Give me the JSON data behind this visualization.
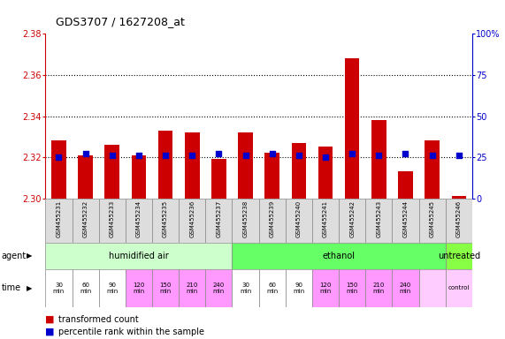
{
  "title": "GDS3707 / 1627208_at",
  "samples": [
    "GSM455231",
    "GSM455232",
    "GSM455233",
    "GSM455234",
    "GSM455235",
    "GSM455236",
    "GSM455237",
    "GSM455238",
    "GSM455239",
    "GSM455240",
    "GSM455241",
    "GSM455242",
    "GSM455243",
    "GSM455244",
    "GSM455245",
    "GSM455246"
  ],
  "red_values": [
    2.328,
    2.321,
    2.326,
    2.321,
    2.333,
    2.332,
    2.319,
    2.332,
    2.322,
    2.327,
    2.325,
    2.368,
    2.338,
    2.313,
    2.328,
    2.301
  ],
  "blue_values": [
    25,
    27,
    26,
    26,
    26,
    26,
    27,
    26,
    27,
    26,
    25,
    27,
    26,
    27,
    26,
    26
  ],
  "ymin": 2.3,
  "ymax": 2.38,
  "y2min": 0,
  "y2max": 100,
  "yticks": [
    2.3,
    2.32,
    2.34,
    2.36,
    2.38
  ],
  "y2ticks": [
    0,
    25,
    50,
    75,
    100
  ],
  "grid_values": [
    2.32,
    2.34,
    2.36
  ],
  "bar_color": "#cc0000",
  "blue_color": "#0000cc",
  "left_axis_color": "#cc0000",
  "right_axis_color": "#0000cc",
  "legend_red": "transformed count",
  "legend_blue": "percentile rank within the sample",
  "agent_humidified_color": "#ccffcc",
  "agent_ethanol_color": "#66ff66",
  "agent_untreated_color": "#88ff44",
  "time_white_color": "#ffffff",
  "time_pink_color": "#ff99ff",
  "time_light_pink_color": "#ffccff",
  "sample_bg_color": "#dddddd"
}
